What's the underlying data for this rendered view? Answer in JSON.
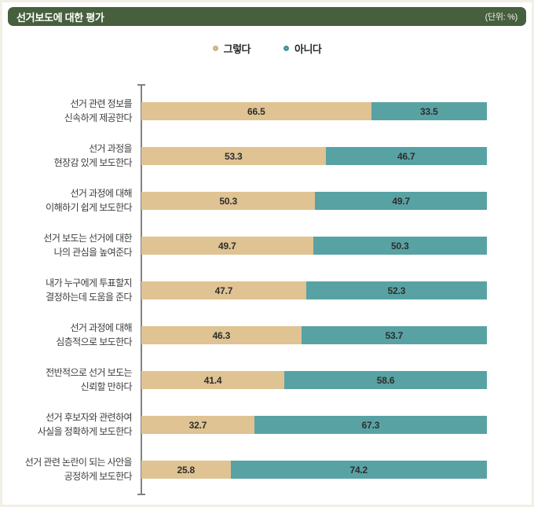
{
  "header": {
    "title": "선거보도에 대한 평가",
    "unit": "(단위: %)"
  },
  "legend": {
    "items": [
      {
        "label": "그렇다",
        "color": "#dfc392",
        "ring_color": "#cdb182"
      },
      {
        "label": "아니다",
        "color": "#58a2a4",
        "ring_color": "#3f979b"
      }
    ]
  },
  "colors": {
    "header_bg": "#465f3d",
    "yes_bar": "#dfc392",
    "no_bar": "#58a2a4",
    "axis": "#828282"
  },
  "chart_data": {
    "type": "bar",
    "orientation": "horizontal",
    "stacked": true,
    "title": "선거보도에 대한 평가",
    "unit": "%",
    "xlim": [
      0,
      100
    ],
    "grid": false,
    "legend_position": "top-center",
    "categories": [
      "선거 관련 정보를\n신속하게 제공한다",
      "선거 과정을\n현장감 있게 보도한다",
      "선거 과정에 대해\n이해하기 쉽게 보도한다",
      "선거 보도는 선거에 대한\n나의 관심을 높여준다",
      "내가 누구에게 투표할지\n결정하는데 도움을 준다",
      "선거 과정에 대해\n심층적으로 보도한다",
      "전반적으로 선거 보도는\n신뢰할 만하다",
      "선거 후보자와 관련하여\n사실을 정확하게 보도한다",
      "선거 관련 논란이 되는 사안을\n공정하게 보도한다"
    ],
    "series": [
      {
        "name": "그렇다",
        "color": "#dfc392",
        "values": [
          66.5,
          53.3,
          50.3,
          49.7,
          47.7,
          46.3,
          41.4,
          32.7,
          25.8
        ]
      },
      {
        "name": "아니다",
        "color": "#58a2a4",
        "values": [
          33.5,
          46.7,
          49.7,
          50.3,
          52.3,
          53.7,
          58.6,
          67.3,
          74.2
        ]
      }
    ]
  }
}
